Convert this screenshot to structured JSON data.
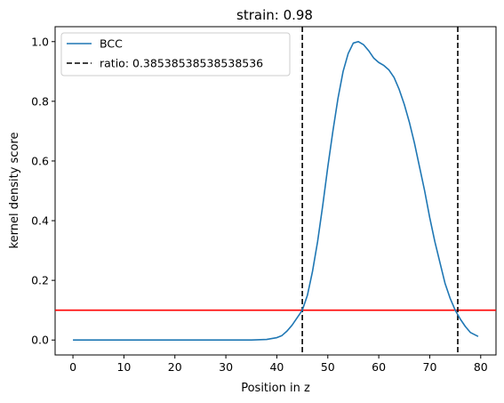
{
  "chart_data": {
    "type": "line",
    "title": "strain: 0.98",
    "xlabel": "Position in z",
    "ylabel": "kernel density score",
    "xlim": [
      -3.5,
      83.0
    ],
    "ylim": [
      -0.05,
      1.05
    ],
    "x_ticks": [
      0,
      10,
      20,
      30,
      40,
      50,
      60,
      70,
      80
    ],
    "x_tick_labels": [
      "0",
      "10",
      "20",
      "30",
      "40",
      "50",
      "60",
      "70",
      "80"
    ],
    "y_ticks": [
      0.0,
      0.2,
      0.4,
      0.6,
      0.8,
      1.0
    ],
    "y_tick_labels": [
      "0.0",
      "0.2",
      "0.4",
      "0.6",
      "0.8",
      "1.0"
    ],
    "grid": false,
    "legend_position": "top-left",
    "series": [
      {
        "name": "BCC",
        "color": "#1f77b4",
        "style": "solid",
        "x": [
          0,
          5,
          10,
          15,
          20,
          25,
          30,
          35,
          38,
          40,
          41,
          42,
          43,
          44,
          45,
          46,
          47,
          48,
          49,
          50,
          51,
          52,
          53,
          54,
          55,
          56,
          57,
          58,
          59,
          60,
          61,
          62,
          63,
          64,
          65,
          66,
          67,
          68,
          69,
          70,
          71,
          72,
          73,
          74,
          75,
          76,
          77,
          78,
          79.5
        ],
        "y": [
          0.0,
          0.0,
          0.0,
          0.0,
          0.0,
          0.0,
          0.0,
          0.0,
          0.002,
          0.008,
          0.015,
          0.03,
          0.05,
          0.075,
          0.1,
          0.15,
          0.23,
          0.33,
          0.45,
          0.58,
          0.7,
          0.81,
          0.9,
          0.96,
          0.995,
          1.0,
          0.99,
          0.97,
          0.945,
          0.93,
          0.92,
          0.905,
          0.88,
          0.84,
          0.79,
          0.73,
          0.66,
          0.58,
          0.5,
          0.41,
          0.33,
          0.26,
          0.19,
          0.14,
          0.1,
          0.07,
          0.045,
          0.025,
          0.012
        ]
      }
    ],
    "vertical_lines": [
      {
        "x": 45.0,
        "color": "#000000",
        "style": "dashed",
        "label": "ratio: 0.38538538538538536"
      },
      {
        "x": 75.5,
        "color": "#000000",
        "style": "dashed"
      }
    ],
    "horizontal_lines": [
      {
        "y": 0.1,
        "color": "#ff0000",
        "style": "solid"
      }
    ],
    "legend": [
      {
        "label": "BCC",
        "color": "#1f77b4",
        "style": "solid"
      },
      {
        "label": "ratio: 0.38538538538538536",
        "color": "#000000",
        "style": "dashed"
      }
    ]
  }
}
